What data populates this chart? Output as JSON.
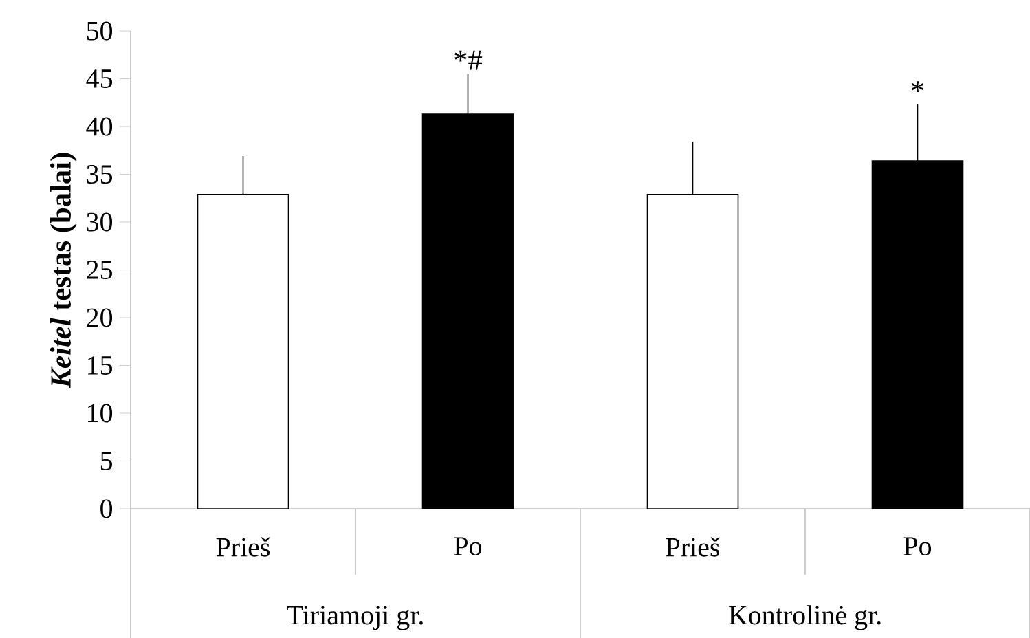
{
  "chart_data": {
    "type": "bar",
    "ylabel": "*Keitel* testas (balai)",
    "categories": [
      "Prieš",
      "Po",
      "Prieš",
      "Po"
    ],
    "values": [
      32.9,
      41.3,
      32.9,
      36.4
    ],
    "errors": [
      [
        32.9,
        36.9
      ],
      [
        41.3,
        45.5
      ],
      [
        32.9,
        38.4
      ],
      [
        36.4,
        42.3
      ]
    ],
    "colors": [
      "#ffffff",
      "#000000",
      "#ffffff",
      "#000000"
    ],
    "ylim": [
      0,
      50
    ],
    "yticks": [
      0,
      5,
      10,
      15,
      20,
      25,
      30,
      35,
      40,
      45,
      50
    ],
    "annotations": [
      {
        "text": "*#",
        "y": 45.5
      },
      {
        "text": "*",
        "y": 42.3
      },
      "Tiriamoji gr.",
      "Kontrolinė gr."
    ],
    "grid": false
  }
}
